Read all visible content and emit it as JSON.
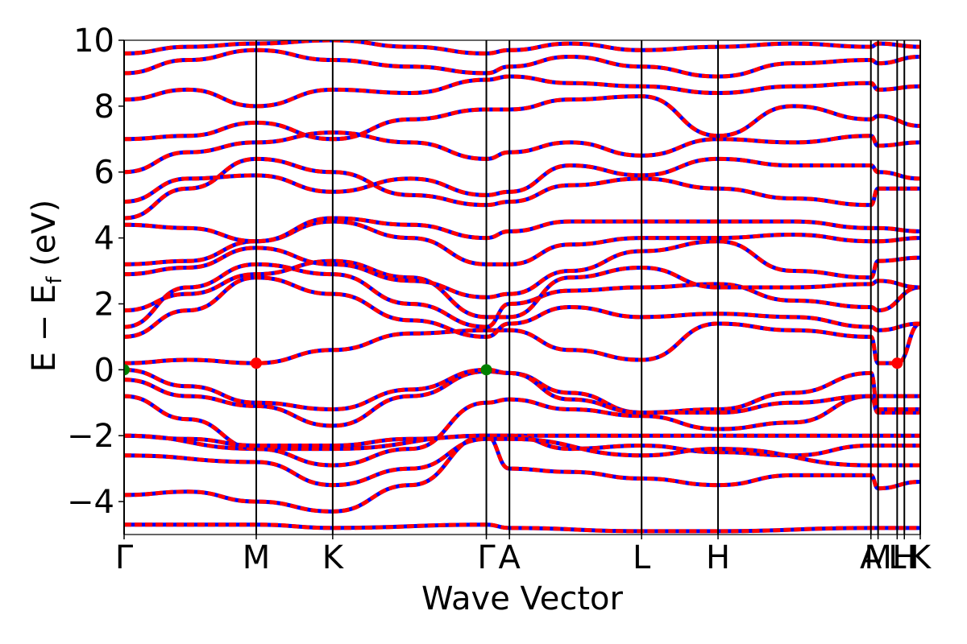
{
  "chart_data": {
    "type": "line",
    "title": "",
    "xlabel": "Wave Vector",
    "ylabel_main": "E − E",
    "ylabel_sub": "f",
    "ylabel_unit": " (eV)",
    "ylim": [
      -5,
      10
    ],
    "yticks": [
      10,
      8,
      6,
      4,
      2,
      0,
      -2,
      -4
    ],
    "ytick_labels": [
      "10",
      "8",
      "6",
      "4",
      "2",
      "0",
      "−2",
      "−4"
    ],
    "xlim": [
      0,
      1
    ],
    "kpoints": [
      {
        "label": "Γ",
        "x": 0.0
      },
      {
        "label": "M",
        "x": 0.166
      },
      {
        "label": "K",
        "x": 0.262
      },
      {
        "label": "Γ",
        "x": 0.455
      },
      {
        "label": "A",
        "x": 0.484
      },
      {
        "label": "L",
        "x": 0.65
      },
      {
        "label": "H",
        "x": 0.746
      },
      {
        "label": "A",
        "x": 0.938
      },
      {
        "label": "M",
        "x": 0.947
      },
      {
        "label": "L",
        "x": 0.971
      },
      {
        "label": "H",
        "x": 0.98
      },
      {
        "label": "K",
        "x": 1.0
      }
    ],
    "series_colors": {
      "spin_up": "#ff0000",
      "spin_down": "#0000ff"
    },
    "vbm_color": "#008000",
    "cbm_color": "#ff0000",
    "vbm_points": [
      [
        0.0,
        0.0
      ],
      [
        0.455,
        0.0
      ]
    ],
    "cbm_points": [
      [
        0.166,
        0.2
      ],
      [
        0.971,
        0.2
      ]
    ],
    "bands": [
      [
        [
          0,
          -4.7
        ],
        [
          0.166,
          -4.7
        ],
        [
          0.262,
          -4.8
        ],
        [
          0.455,
          -4.7
        ],
        [
          0.484,
          -4.8
        ],
        [
          0.65,
          -4.9
        ],
        [
          0.746,
          -4.9
        ],
        [
          0.938,
          -4.8
        ],
        [
          0.947,
          -4.8
        ],
        [
          1.0,
          -4.8
        ]
      ],
      [
        [
          0,
          -3.8
        ],
        [
          0.08,
          -3.7
        ],
        [
          0.166,
          -4.0
        ],
        [
          0.262,
          -4.3
        ],
        [
          0.36,
          -3.5
        ],
        [
          0.455,
          -2.0
        ],
        [
          0.484,
          -2.0
        ],
        [
          0.55,
          -2.0
        ],
        [
          0.65,
          -2.0
        ],
        [
          0.746,
          -2.0
        ],
        [
          0.938,
          -2.0
        ],
        [
          0.947,
          -2.0
        ],
        [
          1.0,
          -2.0
        ]
      ],
      [
        [
          0,
          -2.0
        ],
        [
          0.166,
          -2.4
        ],
        [
          0.262,
          -2.4
        ],
        [
          0.455,
          -2.0
        ],
        [
          0.484,
          -3.0
        ],
        [
          0.56,
          -3.1
        ],
        [
          0.65,
          -3.3
        ],
        [
          0.746,
          -3.5
        ],
        [
          0.84,
          -3.2
        ],
        [
          0.938,
          -3.2
        ],
        [
          0.947,
          -3.6
        ],
        [
          1.0,
          -3.4
        ]
      ],
      [
        [
          0,
          -0.8
        ],
        [
          0.08,
          -1.5
        ],
        [
          0.166,
          -2.4
        ],
        [
          0.262,
          -2.9
        ],
        [
          0.36,
          -2.4
        ],
        [
          0.455,
          -1.0
        ],
        [
          0.484,
          -0.9
        ],
        [
          0.56,
          -1.2
        ],
        [
          0.65,
          -1.4
        ],
        [
          0.746,
          -1.8
        ],
        [
          0.84,
          -1.6
        ],
        [
          0.938,
          -0.8
        ],
        [
          0.947,
          -1.3
        ],
        [
          1.0,
          -1.3
        ]
      ],
      [
        [
          0,
          -0.3
        ],
        [
          0.08,
          -0.8
        ],
        [
          0.166,
          -1.1
        ],
        [
          0.262,
          -1.7
        ],
        [
          0.36,
          -0.8
        ],
        [
          0.455,
          -0.05
        ],
        [
          0.484,
          -0.1
        ],
        [
          0.56,
          -0.7
        ],
        [
          0.65,
          -1.3
        ],
        [
          0.746,
          -1.2
        ],
        [
          0.84,
          -0.7
        ],
        [
          0.938,
          -0.1
        ],
        [
          0.947,
          -1.2
        ],
        [
          1.0,
          -1.2
        ]
      ],
      [
        [
          0,
          0.0
        ],
        [
          0.08,
          -0.5
        ],
        [
          0.166,
          -1.0
        ],
        [
          0.262,
          -1.2
        ],
        [
          0.36,
          -0.6
        ],
        [
          0.455,
          0.0
        ],
        [
          0.484,
          -0.1
        ],
        [
          0.56,
          -0.9
        ],
        [
          0.65,
          -1.3
        ],
        [
          0.746,
          -1.3
        ],
        [
          0.84,
          -1.0
        ],
        [
          0.938,
          -0.8
        ],
        [
          0.947,
          -0.8
        ],
        [
          1.0,
          -0.8
        ]
      ],
      [
        [
          0,
          -2.0
        ],
        [
          0.08,
          -2.1
        ],
        [
          0.166,
          -2.3
        ],
        [
          0.262,
          -2.3
        ],
        [
          0.36,
          -2.1
        ],
        [
          0.455,
          -2.0
        ],
        [
          0.484,
          -2.0
        ],
        [
          0.56,
          -2.4
        ],
        [
          0.65,
          -2.3
        ],
        [
          0.746,
          -2.5
        ],
        [
          0.84,
          -2.6
        ],
        [
          0.938,
          -2.3
        ],
        [
          0.947,
          -2.3
        ],
        [
          1.0,
          -2.3
        ]
      ],
      [
        [
          0,
          -2.6
        ],
        [
          0.166,
          -2.8
        ],
        [
          0.262,
          -3.5
        ],
        [
          0.36,
          -3.0
        ],
        [
          0.455,
          -2.1
        ],
        [
          0.484,
          -2.1
        ],
        [
          0.65,
          -2.6
        ],
        [
          0.746,
          -2.4
        ],
        [
          0.938,
          -2.9
        ],
        [
          0.947,
          -2.9
        ],
        [
          1.0,
          -2.9
        ]
      ],
      [
        [
          0,
          0.2
        ],
        [
          0.08,
          0.3
        ],
        [
          0.166,
          0.2
        ],
        [
          0.262,
          0.6
        ],
        [
          0.36,
          1.1
        ],
        [
          0.455,
          1.2
        ],
        [
          0.484,
          1.2
        ],
        [
          0.56,
          0.6
        ],
        [
          0.65,
          0.3
        ],
        [
          0.746,
          1.4
        ],
        [
          0.84,
          1.2
        ],
        [
          0.938,
          1.0
        ],
        [
          0.947,
          0.2
        ],
        [
          0.971,
          0.2
        ],
        [
          1.0,
          1.4
        ]
      ],
      [
        [
          0,
          1.0
        ],
        [
          0.08,
          1.8
        ],
        [
          0.166,
          2.8
        ],
        [
          0.262,
          2.3
        ],
        [
          0.36,
          1.5
        ],
        [
          0.455,
          1.0
        ],
        [
          0.484,
          1.4
        ],
        [
          0.56,
          1.9
        ],
        [
          0.65,
          1.6
        ],
        [
          0.746,
          1.7
        ],
        [
          0.84,
          1.6
        ],
        [
          0.938,
          1.3
        ],
        [
          0.947,
          1.2
        ],
        [
          1.0,
          1.4
        ]
      ],
      [
        [
          0,
          1.3
        ],
        [
          0.08,
          2.5
        ],
        [
          0.166,
          3.2
        ],
        [
          0.262,
          2.9
        ],
        [
          0.36,
          2.0
        ],
        [
          0.455,
          1.3
        ],
        [
          0.484,
          2.0
        ],
        [
          0.56,
          2.4
        ],
        [
          0.65,
          2.5
        ],
        [
          0.746,
          2.6
        ],
        [
          0.84,
          2.1
        ],
        [
          0.938,
          1.9
        ],
        [
          0.947,
          1.8
        ],
        [
          1.0,
          2.5
        ]
      ],
      [
        [
          0,
          1.8
        ],
        [
          0.08,
          2.3
        ],
        [
          0.166,
          2.9
        ],
        [
          0.262,
          3.3
        ],
        [
          0.36,
          2.8
        ],
        [
          0.455,
          1.6
        ],
        [
          0.484,
          1.6
        ],
        [
          0.56,
          2.8
        ],
        [
          0.65,
          3.1
        ],
        [
          0.746,
          2.5
        ],
        [
          0.84,
          2.5
        ],
        [
          0.938,
          2.6
        ],
        [
          0.947,
          2.7
        ],
        [
          1.0,
          2.5
        ]
      ],
      [
        [
          0,
          2.9
        ],
        [
          0.08,
          3.1
        ],
        [
          0.166,
          3.7
        ],
        [
          0.262,
          3.2
        ],
        [
          0.36,
          2.7
        ],
        [
          0.455,
          2.2
        ],
        [
          0.484,
          2.3
        ],
        [
          0.56,
          3.0
        ],
        [
          0.65,
          3.6
        ],
        [
          0.746,
          3.9
        ],
        [
          0.84,
          3.0
        ],
        [
          0.938,
          2.8
        ],
        [
          0.947,
          3.3
        ],
        [
          1.0,
          3.4
        ]
      ],
      [
        [
          0,
          3.2
        ],
        [
          0.08,
          3.3
        ],
        [
          0.166,
          3.9
        ],
        [
          0.262,
          4.5
        ],
        [
          0.36,
          4.0
        ],
        [
          0.455,
          3.2
        ],
        [
          0.484,
          3.2
        ],
        [
          0.56,
          3.8
        ],
        [
          0.65,
          4.0
        ],
        [
          0.746,
          4.0
        ],
        [
          0.84,
          4.1
        ],
        [
          0.938,
          3.9
        ],
        [
          0.947,
          3.9
        ],
        [
          1.0,
          4.0
        ]
      ],
      [
        [
          0,
          4.4
        ],
        [
          0.08,
          4.3
        ],
        [
          0.166,
          3.9
        ],
        [
          0.262,
          4.6
        ],
        [
          0.36,
          4.4
        ],
        [
          0.455,
          4.0
        ],
        [
          0.484,
          4.2
        ],
        [
          0.56,
          4.5
        ],
        [
          0.65,
          4.5
        ],
        [
          0.746,
          4.5
        ],
        [
          0.84,
          4.5
        ],
        [
          0.938,
          4.3
        ],
        [
          0.947,
          4.3
        ],
        [
          1.0,
          4.2
        ]
      ],
      [
        [
          0,
          4.6
        ],
        [
          0.08,
          5.5
        ],
        [
          0.166,
          6.4
        ],
        [
          0.262,
          6.0
        ],
        [
          0.36,
          5.3
        ],
        [
          0.455,
          5.0
        ],
        [
          0.484,
          5.1
        ],
        [
          0.56,
          5.6
        ],
        [
          0.65,
          5.8
        ],
        [
          0.746,
          5.5
        ],
        [
          0.84,
          5.2
        ],
        [
          0.938,
          5.0
        ],
        [
          0.947,
          5.5
        ],
        [
          1.0,
          5.5
        ]
      ],
      [
        [
          0,
          5.1
        ],
        [
          0.08,
          5.8
        ],
        [
          0.166,
          5.9
        ],
        [
          0.262,
          5.4
        ],
        [
          0.36,
          5.8
        ],
        [
          0.455,
          5.3
        ],
        [
          0.484,
          5.4
        ],
        [
          0.56,
          6.2
        ],
        [
          0.65,
          5.9
        ],
        [
          0.746,
          6.4
        ],
        [
          0.84,
          6.2
        ],
        [
          0.938,
          6.2
        ],
        [
          0.947,
          6.0
        ],
        [
          1.0,
          5.8
        ]
      ],
      [
        [
          0,
          6.0
        ],
        [
          0.08,
          6.6
        ],
        [
          0.166,
          6.9
        ],
        [
          0.262,
          7.2
        ],
        [
          0.36,
          6.9
        ],
        [
          0.455,
          6.4
        ],
        [
          0.484,
          6.6
        ],
        [
          0.56,
          6.9
        ],
        [
          0.65,
          6.5
        ],
        [
          0.746,
          7.0
        ],
        [
          0.84,
          6.9
        ],
        [
          0.938,
          7.1
        ],
        [
          0.947,
          6.8
        ],
        [
          1.0,
          6.9
        ]
      ],
      [
        [
          0,
          7.0
        ],
        [
          0.08,
          7.1
        ],
        [
          0.166,
          7.5
        ],
        [
          0.262,
          7.0
        ],
        [
          0.36,
          7.6
        ],
        [
          0.455,
          7.9
        ],
        [
          0.484,
          7.9
        ],
        [
          0.56,
          8.2
        ],
        [
          0.65,
          8.3
        ],
        [
          0.746,
          7.1
        ],
        [
          0.84,
          8.0
        ],
        [
          0.938,
          7.6
        ],
        [
          0.947,
          7.7
        ],
        [
          1.0,
          7.4
        ]
      ],
      [
        [
          0,
          8.2
        ],
        [
          0.08,
          8.5
        ],
        [
          0.166,
          8.0
        ],
        [
          0.262,
          8.5
        ],
        [
          0.36,
          8.4
        ],
        [
          0.455,
          8.8
        ],
        [
          0.484,
          8.9
        ],
        [
          0.56,
          8.7
        ],
        [
          0.65,
          8.6
        ],
        [
          0.746,
          8.4
        ],
        [
          0.84,
          8.6
        ],
        [
          0.938,
          8.7
        ],
        [
          0.947,
          8.5
        ],
        [
          1.0,
          8.6
        ]
      ],
      [
        [
          0,
          9.0
        ],
        [
          0.08,
          9.4
        ],
        [
          0.166,
          9.7
        ],
        [
          0.262,
          9.4
        ],
        [
          0.36,
          9.2
        ],
        [
          0.455,
          9.0
        ],
        [
          0.484,
          9.2
        ],
        [
          0.56,
          9.5
        ],
        [
          0.65,
          9.2
        ],
        [
          0.746,
          8.9
        ],
        [
          0.84,
          9.3
        ],
        [
          0.938,
          9.4
        ],
        [
          0.947,
          9.3
        ],
        [
          1.0,
          9.5
        ]
      ],
      [
        [
          0,
          9.6
        ],
        [
          0.08,
          9.8
        ],
        [
          0.166,
          9.9
        ],
        [
          0.262,
          10.0
        ],
        [
          0.36,
          9.8
        ],
        [
          0.455,
          9.6
        ],
        [
          0.484,
          9.7
        ],
        [
          0.56,
          9.9
        ],
        [
          0.65,
          9.7
        ],
        [
          0.746,
          9.8
        ],
        [
          0.84,
          9.9
        ],
        [
          0.938,
          9.8
        ],
        [
          0.947,
          9.9
        ],
        [
          1.0,
          9.8
        ]
      ]
    ]
  }
}
